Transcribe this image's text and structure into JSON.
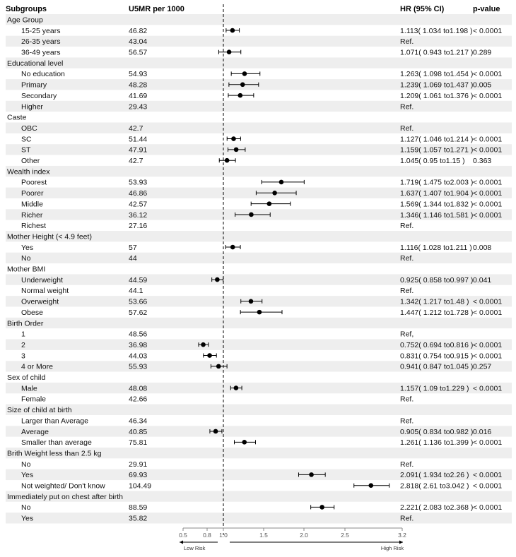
{
  "chart_data": {
    "type": "forest",
    "headers": {
      "subgroups": "Subgroups",
      "u5mr": "U5MR per 1000",
      "hr": "HR (95% CI)",
      "p": "p-value"
    },
    "rows": [
      {
        "kind": "group",
        "label": "Age Group"
      },
      {
        "kind": "item",
        "label": "15-25 years",
        "u5mr": "46.82",
        "hr_text": "1.113( 1.034 to1.198 )",
        "p": "< 0.0001",
        "hr": 1.113,
        "lo": 1.034,
        "hi": 1.198
      },
      {
        "kind": "item",
        "label": "26-35 years",
        "u5mr": "43.04",
        "hr_text": "Ref.",
        "p": ""
      },
      {
        "kind": "item",
        "label": "36-49 years",
        "u5mr": "56.57",
        "hr_text": "1.071( 0.943 to1.217 )",
        "p": "0.289",
        "hr": 1.071,
        "lo": 0.943,
        "hi": 1.217
      },
      {
        "kind": "group",
        "label": "Educational level"
      },
      {
        "kind": "item",
        "label": "No education",
        "u5mr": "54.93",
        "hr_text": "1.263( 1.098 to1.454 )",
        "p": "< 0.0001",
        "hr": 1.263,
        "lo": 1.098,
        "hi": 1.454
      },
      {
        "kind": "item",
        "label": "Primary",
        "u5mr": "48.28",
        "hr_text": "1.239( 1.069 to1.437 )",
        "p": "0.005",
        "hr": 1.239,
        "lo": 1.069,
        "hi": 1.437
      },
      {
        "kind": "item",
        "label": "Secondary",
        "u5mr": "41.69",
        "hr_text": "1.209( 1.061 to1.376 )",
        "p": "< 0.0001",
        "hr": 1.209,
        "lo": 1.061,
        "hi": 1.376
      },
      {
        "kind": "item",
        "label": "Higher",
        "u5mr": "29.43",
        "hr_text": "Ref.",
        "p": ""
      },
      {
        "kind": "group",
        "label": "Caste"
      },
      {
        "kind": "item",
        "label": "OBC",
        "u5mr": "42.7",
        "hr_text": "Ref.",
        "p": ""
      },
      {
        "kind": "item",
        "label": "SC",
        "u5mr": "51.44",
        "hr_text": "1.127( 1.046 to1.214 )",
        "p": "< 0.0001",
        "hr": 1.127,
        "lo": 1.046,
        "hi": 1.214
      },
      {
        "kind": "item",
        "label": "ST",
        "u5mr": "47.91",
        "hr_text": "1.159( 1.057 to1.271 )",
        "p": "< 0.0001",
        "hr": 1.159,
        "lo": 1.057,
        "hi": 1.271
      },
      {
        "kind": "item",
        "label": "Other",
        "u5mr": "42.7",
        "hr_text": "1.045( 0.95 to1.15 )",
        "p": "0.363",
        "hr": 1.045,
        "lo": 0.95,
        "hi": 1.15
      },
      {
        "kind": "group",
        "label": "Wealth index"
      },
      {
        "kind": "item",
        "label": "Poorest",
        "u5mr": "53.93",
        "hr_text": "1.719( 1.475 to2.003 )",
        "p": "< 0.0001",
        "hr": 1.719,
        "lo": 1.475,
        "hi": 2.003
      },
      {
        "kind": "item",
        "label": "Poorer",
        "u5mr": "46.86",
        "hr_text": "1.637( 1.407 to1.904 )",
        "p": "< 0.0001",
        "hr": 1.637,
        "lo": 1.407,
        "hi": 1.904
      },
      {
        "kind": "item",
        "label": "Middle",
        "u5mr": "42.57",
        "hr_text": "1.569( 1.344 to1.832 )",
        "p": "< 0.0001",
        "hr": 1.569,
        "lo": 1.344,
        "hi": 1.832
      },
      {
        "kind": "item",
        "label": "Richer",
        "u5mr": "36.12",
        "hr_text": "1.346( 1.146 to1.581 )",
        "p": "< 0.0001",
        "hr": 1.346,
        "lo": 1.146,
        "hi": 1.581
      },
      {
        "kind": "item",
        "label": "Richest",
        "u5mr": "27.16",
        "hr_text": "Ref.",
        "p": ""
      },
      {
        "kind": "group",
        "label": "Mother Height (< 4.9 feet)"
      },
      {
        "kind": "item",
        "label": "Yes",
        "u5mr": "57",
        "hr_text": "1.116( 1.028 to1.211 )",
        "p": "0.008",
        "hr": 1.116,
        "lo": 1.028,
        "hi": 1.211
      },
      {
        "kind": "item",
        "label": "No",
        "u5mr": "44",
        "hr_text": "Ref.",
        "p": ""
      },
      {
        "kind": "group",
        "label": "Mother BMI"
      },
      {
        "kind": "item",
        "label": "Underweight",
        "u5mr": "44.59",
        "hr_text": "0.925( 0.858 to0.997 )",
        "p": "0.041",
        "hr": 0.925,
        "lo": 0.858,
        "hi": 0.997
      },
      {
        "kind": "item",
        "label": "Normal weight",
        "u5mr": "44.1",
        "hr_text": "Ref.",
        "p": ""
      },
      {
        "kind": "item",
        "label": "Overweight",
        "u5mr": "53.66",
        "hr_text": "1.342( 1.217 to1.48 )",
        "p": "< 0.0001",
        "hr": 1.342,
        "lo": 1.217,
        "hi": 1.48
      },
      {
        "kind": "item",
        "label": "Obese",
        "u5mr": "57.62",
        "hr_text": "1.447( 1.212 to1.728 )",
        "p": "< 0.0001",
        "hr": 1.447,
        "lo": 1.212,
        "hi": 1.728
      },
      {
        "kind": "group",
        "label": "Birth Order"
      },
      {
        "kind": "item",
        "label": "1",
        "u5mr": "48.56",
        "hr_text": "Ref,",
        "p": ""
      },
      {
        "kind": "item",
        "label": "2",
        "u5mr": "36.98",
        "hr_text": "0.752( 0.694 to0.816 )",
        "p": "< 0.0001",
        "hr": 0.752,
        "lo": 0.694,
        "hi": 0.816
      },
      {
        "kind": "item",
        "label": "3",
        "u5mr": "44.03",
        "hr_text": "0.831( 0.754 to0.915 )",
        "p": "< 0.0001",
        "hr": 0.831,
        "lo": 0.754,
        "hi": 0.915
      },
      {
        "kind": "item",
        "label": "4 or More",
        "u5mr": "55.93",
        "hr_text": "0.941( 0.847 to1.045 )",
        "p": "0.257",
        "hr": 0.941,
        "lo": 0.847,
        "hi": 1.045
      },
      {
        "kind": "group",
        "label": "Sex of child"
      },
      {
        "kind": "item",
        "label": "Male",
        "u5mr": "48.08",
        "hr_text": "1.157( 1.09 to1.229 )",
        "p": "< 0.0001",
        "hr": 1.157,
        "lo": 1.09,
        "hi": 1.229
      },
      {
        "kind": "item",
        "label": "Female",
        "u5mr": "42.66",
        "hr_text": "Ref.",
        "p": ""
      },
      {
        "kind": "group",
        "label": "Size of child at birth"
      },
      {
        "kind": "item",
        "label": "Larger than Average",
        "u5mr": "46.34",
        "hr_text": "Ref.",
        "p": ""
      },
      {
        "kind": "item",
        "label": "Average",
        "u5mr": "40.85",
        "hr_text": "0.905( 0.834 to0.982 )",
        "p": "0.016",
        "hr": 0.905,
        "lo": 0.834,
        "hi": 0.982
      },
      {
        "kind": "item",
        "label": "Smaller than average",
        "u5mr": "75.81",
        "hr_text": "1.261( 1.136 to1.399 )",
        "p": "< 0.0001",
        "hr": 1.261,
        "lo": 1.136,
        "hi": 1.399
      },
      {
        "kind": "group",
        "label": "Brith Weight less than 2.5 kg"
      },
      {
        "kind": "item",
        "label": "No",
        "u5mr": "29.91",
        "hr_text": "Ref.",
        "p": ""
      },
      {
        "kind": "item",
        "label": "Yes",
        "u5mr": "69.93",
        "hr_text": "2.091( 1.934 to2.26 )",
        "p": "< 0.0001",
        "hr": 2.091,
        "lo": 1.934,
        "hi": 2.26
      },
      {
        "kind": "item",
        "label": "Not weighted/ Don't know",
        "u5mr": "104.49",
        "hr_text": "2.818( 2.61 to3.042 )",
        "p": "< 0.0001",
        "hr": 2.818,
        "lo": 2.61,
        "hi": 3.042
      },
      {
        "kind": "group",
        "label": "Immediately put on chest after birth"
      },
      {
        "kind": "item",
        "label": "No",
        "u5mr": "88.59",
        "hr_text": "2.221( 2.083 to2.368 )",
        "p": "< 0.0001",
        "hr": 2.221,
        "lo": 2.083,
        "hi": 2.368
      },
      {
        "kind": "item",
        "label": "Yes",
        "u5mr": "35.82",
        "hr_text": "Ref.",
        "p": ""
      }
    ],
    "x_axis": {
      "ticks": [
        0.5,
        0.8,
        1.0,
        1.5,
        2.0,
        2.5,
        3.2
      ],
      "tick_labels": [
        "0.5",
        "0.8",
        "1.0",
        "1.5",
        "2.0",
        "2.5",
        "3.2"
      ],
      "range": [
        0.5,
        3.2
      ],
      "reference_line": 1.0
    },
    "risk_labels": {
      "low": "Low Risk",
      "high": "High Risk"
    },
    "colors": {
      "stripe": "#eeeeee",
      "marker": "#000000"
    }
  }
}
